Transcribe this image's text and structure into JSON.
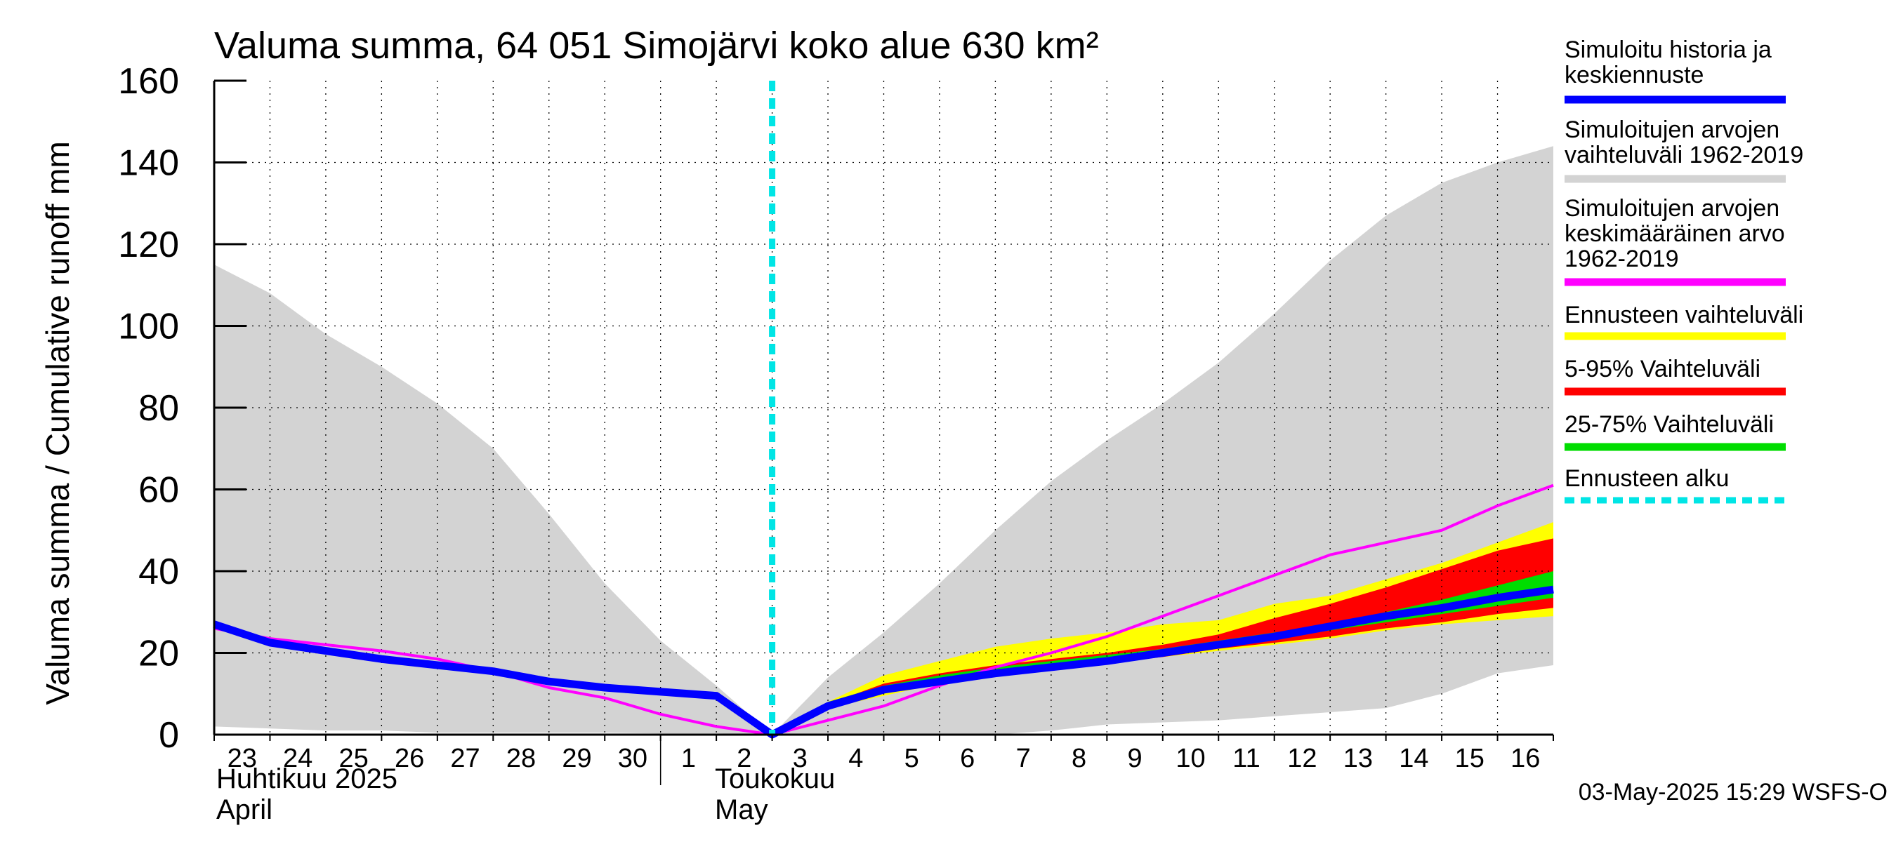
{
  "chart_data": {
    "type": "area",
    "title": "Valuma summa, 64 051 Simojärvi koko alue 630 km²",
    "ylabel": "Valuma summa / Cumulative runoff    mm",
    "ylim": [
      0,
      160
    ],
    "yticks": [
      "0",
      "20",
      "40",
      "60",
      "80",
      "100",
      "120",
      "140",
      "160"
    ],
    "xlim": [
      0,
      24
    ],
    "x_tick_labels": [
      {
        "x": 0.5,
        "label": "23"
      },
      {
        "x": 1.5,
        "label": "24"
      },
      {
        "x": 2.5,
        "label": "25"
      },
      {
        "x": 3.5,
        "label": "26"
      },
      {
        "x": 4.5,
        "label": "27"
      },
      {
        "x": 5.5,
        "label": "28"
      },
      {
        "x": 6.5,
        "label": "29"
      },
      {
        "x": 7.5,
        "label": "30"
      },
      {
        "x": 8.5,
        "label": "1"
      },
      {
        "x": 9.5,
        "label": "2"
      },
      {
        "x": 10.5,
        "label": "3"
      },
      {
        "x": 11.5,
        "label": "4"
      },
      {
        "x": 12.5,
        "label": "5"
      },
      {
        "x": 13.5,
        "label": "6"
      },
      {
        "x": 14.5,
        "label": "7"
      },
      {
        "x": 15.5,
        "label": "8"
      },
      {
        "x": 16.5,
        "label": "9"
      },
      {
        "x": 17.5,
        "label": "10"
      },
      {
        "x": 18.5,
        "label": "11"
      },
      {
        "x": 19.5,
        "label": "12"
      },
      {
        "x": 20.5,
        "label": "13"
      },
      {
        "x": 21.5,
        "label": "14"
      },
      {
        "x": 22.5,
        "label": "15"
      },
      {
        "x": 23.5,
        "label": "16"
      }
    ],
    "month_labels": {
      "april_fi": "Huhtikuu  2025",
      "april_en": "April",
      "may_fi": "Toukokuu",
      "may_en": "May"
    },
    "month_boundary_x": 8,
    "forecast_start_x": 10,
    "timestamp": "03-May-2025 15:29 WSFS-O",
    "series": [
      {
        "name": "Simuloitujen arvojen vaihteluväli 1962-2019",
        "kind": "band",
        "color": "#d3d3d3",
        "x": [
          0,
          1,
          2,
          3,
          4,
          5,
          6,
          7,
          8,
          9,
          10,
          11,
          12,
          13,
          14,
          15,
          16,
          17,
          18,
          19,
          20,
          21,
          22,
          23,
          24
        ],
        "lower": [
          2,
          1.5,
          1,
          1,
          0.5,
          0.5,
          0.5,
          0.5,
          0.3,
          0.3,
          0,
          0,
          0,
          0,
          0,
          1,
          2.5,
          3,
          3.5,
          4.5,
          5.5,
          6.5,
          10,
          15,
          17
        ],
        "upper": [
          115,
          108,
          98,
          90,
          81,
          70,
          54,
          37,
          23,
          12,
          0,
          14,
          25,
          37,
          50,
          62,
          72,
          81,
          91,
          103,
          116,
          127,
          135,
          140,
          144
        ]
      },
      {
        "name": "Ennusteen vaihteluväli",
        "kind": "band",
        "color": "#ffff00",
        "x": [
          10,
          11,
          12,
          13,
          14,
          15,
          16,
          17,
          18,
          19,
          20,
          21,
          22,
          23,
          24
        ],
        "lower": [
          0,
          6.5,
          9.5,
          12.5,
          14.5,
          16,
          17.5,
          19,
          20.5,
          22,
          23.5,
          25.5,
          27,
          28,
          29
        ],
        "upper": [
          0,
          8,
          14.5,
          18,
          21.5,
          23.5,
          25,
          27,
          28,
          32,
          34,
          38,
          42,
          47,
          52
        ]
      },
      {
        "name": "5-95% Vaihteluväli",
        "kind": "band",
        "color": "#ff0000",
        "x": [
          10,
          11,
          12,
          13,
          14,
          15,
          16,
          17,
          18,
          19,
          20,
          21,
          22,
          23,
          24
        ],
        "lower": [
          0,
          7,
          10.5,
          12.5,
          14.5,
          16,
          17.5,
          19,
          21,
          22.5,
          24,
          26,
          27.5,
          29.5,
          31
        ],
        "upper": [
          0,
          7.5,
          12.5,
          15,
          17,
          18.5,
          20,
          22,
          24.5,
          28.5,
          32,
          36,
          40.5,
          45,
          48
        ]
      },
      {
        "name": "25-75% Vaihteluväli",
        "kind": "band",
        "color": "#00dd00",
        "x": [
          10,
          11,
          12,
          13,
          14,
          15,
          16,
          17,
          18,
          19,
          20,
          21,
          22,
          23,
          24
        ],
        "lower": [
          0,
          7.5,
          11,
          13.5,
          15.5,
          17,
          18.5,
          20,
          22,
          23.5,
          25.5,
          27.5,
          29.5,
          31.5,
          33.5
        ],
        "upper": [
          0,
          8,
          12,
          14.5,
          16.5,
          18,
          19.5,
          21,
          23,
          25,
          27,
          30,
          33,
          36.5,
          40
        ]
      },
      {
        "name": "Simuloitujen arvojen keskimääräinen arvo 1962-2019",
        "kind": "line",
        "color": "#ff00ff",
        "x": [
          0,
          1,
          2,
          3,
          4,
          5,
          6,
          7,
          8,
          9,
          10,
          11,
          12,
          13,
          14,
          15,
          16,
          17,
          18,
          19,
          20,
          21,
          22,
          23,
          24
        ],
        "values": [
          26,
          23.5,
          22,
          20.5,
          18.5,
          15.5,
          11.5,
          9,
          5,
          2,
          0,
          3.5,
          7,
          12,
          16.5,
          20,
          24,
          29,
          34,
          39,
          44,
          47,
          50,
          56,
          61
        ]
      },
      {
        "name": "Simuloitu historia ja keskiennuste",
        "kind": "line",
        "color": "#0000ff",
        "x": [
          0,
          1,
          2,
          3,
          4,
          5,
          6,
          7,
          8,
          9,
          10,
          11,
          12,
          13,
          14,
          15,
          16,
          17,
          18,
          19,
          20,
          21,
          22,
          23,
          24
        ],
        "values": [
          27,
          22.5,
          20.5,
          18.5,
          17,
          15.5,
          13,
          11.5,
          10.5,
          9.5,
          0,
          7,
          11,
          13,
          15,
          16.5,
          18,
          20,
          22,
          24,
          26.5,
          29,
          31,
          33.5,
          35.5
        ]
      }
    ],
    "legend": [
      {
        "label": "Simuloitu historia ja keskiennuste",
        "color": "#0000ff",
        "style": "solid"
      },
      {
        "label": "Simuloitujen arvojen vaihteluväli 1962-2019",
        "color": "#d3d3d3",
        "style": "solid"
      },
      {
        "label": "Simuloitujen arvojen keskimääräinen arvo  1962-2019",
        "color": "#ff00ff",
        "style": "solid"
      },
      {
        "label": "Ennusteen vaihteluväli",
        "color": "#ffff00",
        "style": "solid"
      },
      {
        "label": "5-95% Vaihteluväli",
        "color": "#ff0000",
        "style": "solid"
      },
      {
        "label": "25-75% Vaihteluväli",
        "color": "#00dd00",
        "style": "solid"
      },
      {
        "label": "Ennusteen alku",
        "color": "#00e5e5",
        "style": "dashed"
      }
    ]
  }
}
